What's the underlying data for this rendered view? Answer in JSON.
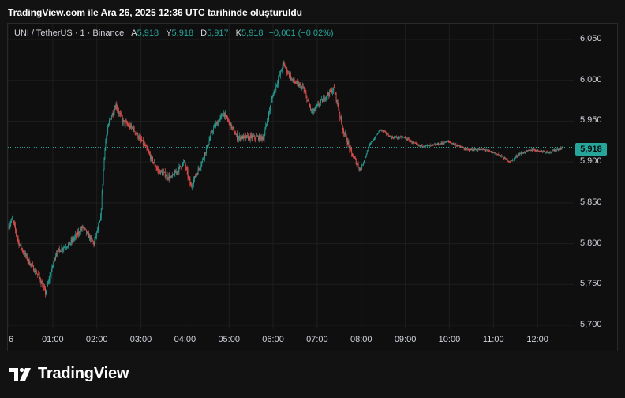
{
  "header": {
    "title": "TradingView.com ile Ara 26, 2025 12:36 UTC tarihinde oluşturuldu"
  },
  "legend": {
    "symbol": "UNI / TetherUS · 1 · Binance",
    "a_label": "A",
    "a_value": "5,918",
    "y_label": "Y",
    "y_value": "5,918",
    "d_label": "D",
    "d_value": "5,917",
    "k_label": "K",
    "k_value": "5,918",
    "change": "−0,001 (−0,02%)"
  },
  "price_badge": "5,918",
  "brand": {
    "name": "TradingView"
  },
  "colors": {
    "up": "#26a69a",
    "down": "#ef5350",
    "background": "#121212",
    "grid": "#1e1e1e"
  },
  "chart_data": {
    "type": "candlestick",
    "interval": "1 minute",
    "ylim": [
      5.7,
      6.06
    ],
    "y_ticks": [
      "6,050",
      "6,000",
      "5,950",
      "5,900",
      "5,850",
      "5,800",
      "5,750",
      "5,700"
    ],
    "y_tick_values": [
      6.05,
      6.0,
      5.95,
      5.9,
      5.85,
      5.8,
      5.75,
      5.7
    ],
    "x_ticks": [
      "6",
      "01:00",
      "02:00",
      "03:00",
      "04:00",
      "05:00",
      "06:00",
      "07:00",
      "08:00",
      "09:00",
      "10:00",
      "11:00",
      "12:00"
    ],
    "x_tick_hours": [
      0,
      1,
      2,
      3,
      4,
      5,
      6,
      7,
      8,
      9,
      10,
      11,
      12
    ],
    "xlim_hours": [
      0,
      12.75
    ],
    "last_price": 5.918,
    "price_path": [
      {
        "t": 0.0,
        "p": 5.82
      },
      {
        "t": 0.1,
        "p": 5.83
      },
      {
        "t": 0.25,
        "p": 5.8
      },
      {
        "t": 0.45,
        "p": 5.78
      },
      {
        "t": 0.7,
        "p": 5.76
      },
      {
        "t": 0.85,
        "p": 5.74
      },
      {
        "t": 1.1,
        "p": 5.79
      },
      {
        "t": 1.4,
        "p": 5.8
      },
      {
        "t": 1.7,
        "p": 5.82
      },
      {
        "t": 1.95,
        "p": 5.8
      },
      {
        "t": 2.1,
        "p": 5.83
      },
      {
        "t": 2.2,
        "p": 5.92
      },
      {
        "t": 2.3,
        "p": 5.95
      },
      {
        "t": 2.45,
        "p": 5.97
      },
      {
        "t": 2.6,
        "p": 5.95
      },
      {
        "t": 2.85,
        "p": 5.94
      },
      {
        "t": 3.1,
        "p": 5.92
      },
      {
        "t": 3.4,
        "p": 5.89
      },
      {
        "t": 3.7,
        "p": 5.88
      },
      {
        "t": 4.0,
        "p": 5.9
      },
      {
        "t": 4.15,
        "p": 5.87
      },
      {
        "t": 4.4,
        "p": 5.9
      },
      {
        "t": 4.65,
        "p": 5.94
      },
      {
        "t": 4.9,
        "p": 5.96
      },
      {
        "t": 5.2,
        "p": 5.93
      },
      {
        "t": 5.5,
        "p": 5.93
      },
      {
        "t": 5.8,
        "p": 5.93
      },
      {
        "t": 6.0,
        "p": 5.98
      },
      {
        "t": 6.25,
        "p": 6.02
      },
      {
        "t": 6.45,
        "p": 6.0
      },
      {
        "t": 6.7,
        "p": 5.99
      },
      {
        "t": 6.9,
        "p": 5.96
      },
      {
        "t": 7.2,
        "p": 5.98
      },
      {
        "t": 7.4,
        "p": 5.99
      },
      {
        "t": 7.6,
        "p": 5.94
      },
      {
        "t": 7.8,
        "p": 5.91
      },
      {
        "t": 8.0,
        "p": 5.89
      },
      {
        "t": 8.2,
        "p": 5.92
      },
      {
        "t": 8.45,
        "p": 5.94
      },
      {
        "t": 8.7,
        "p": 5.93
      },
      {
        "t": 9.0,
        "p": 5.93
      },
      {
        "t": 9.3,
        "p": 5.92
      },
      {
        "t": 9.6,
        "p": 5.92
      },
      {
        "t": 10.0,
        "p": 5.925
      },
      {
        "t": 10.4,
        "p": 5.915
      },
      {
        "t": 10.8,
        "p": 5.915
      },
      {
        "t": 11.1,
        "p": 5.91
      },
      {
        "t": 11.4,
        "p": 5.9
      },
      {
        "t": 11.6,
        "p": 5.91
      },
      {
        "t": 11.9,
        "p": 5.915
      },
      {
        "t": 12.3,
        "p": 5.912
      },
      {
        "t": 12.6,
        "p": 5.918
      }
    ]
  }
}
